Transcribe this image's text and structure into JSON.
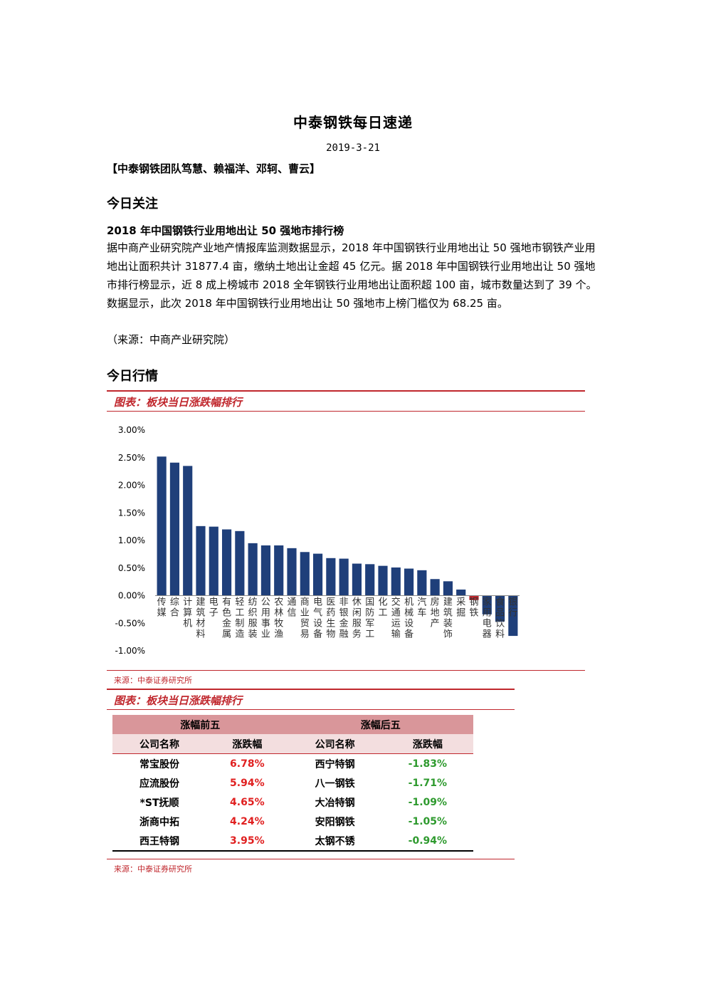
{
  "header": {
    "title": "中泰钢铁每日速递",
    "date": "2019-3-21",
    "team": "【中泰钢铁团队笃慧、赖福洋、邓轲、曹云】"
  },
  "focus": {
    "heading": "今日关注",
    "news_title": "2018 年中国钢铁行业用地出让 50 强地市排行榜",
    "news_body": "据中商产业研究院产业地产情报库监测数据显示，2018 年中国钢铁行业用地出让 50 强地市钢铁产业用地出让面积共计 31877.4 亩，缴纳土地出让金超 45 亿元。据 2018 年中国钢铁行业用地出让 50 强地市排行榜显示，近 8 成上榜城市 2018 全年钢铁行业用地出让面积超 100 亩，城市数量达到了 39 个。数据显示，此次 2018 年中国钢铁行业用地出让 50 强地市上榜门槛仅为 68.25 亩。",
    "source": "（来源：中商产业研究院）"
  },
  "market": {
    "heading": "今日行情",
    "figure1": {
      "caption": "图表：板块当日涨跌幅排行",
      "source": "来源：中泰证券研究所"
    },
    "figure2": {
      "caption": "图表：板块当日涨跌幅排行",
      "source": "来源：中泰证券研究所"
    }
  },
  "chart_data": {
    "type": "bar",
    "ylim": [
      -0.01,
      0.03
    ],
    "yticks": [
      "3.00%",
      "2.50%",
      "2.00%",
      "1.50%",
      "1.00%",
      "0.50%",
      "0.00%",
      "-0.50%",
      "-1.00%"
    ],
    "categories": [
      "传媒",
      "综合",
      "计算机",
      "建筑材料",
      "电子",
      "有色金属",
      "轻工制造",
      "纺织服装",
      "公用事业",
      "农林牧渔",
      "通信",
      "商业贸易",
      "电气设备",
      "医药生物",
      "非银金融",
      "休闲服务",
      "国防军工",
      "化工",
      "交通运输",
      "机械设备",
      "汽车",
      "房地产",
      "建筑装饰",
      "采掘",
      "钢铁",
      "家用电器",
      "食品饮料",
      "银行"
    ],
    "values": [
      0.0252,
      0.0241,
      0.0235,
      0.0126,
      0.0125,
      0.012,
      0.0117,
      0.0095,
      0.0091,
      0.0091,
      0.0086,
      0.0079,
      0.0076,
      0.0068,
      0.0067,
      0.0058,
      0.0057,
      0.0054,
      0.0051,
      0.0049,
      0.0046,
      0.003,
      0.0026,
      0.0011,
      -0.0008,
      -0.0034,
      -0.0047,
      -0.0073
    ],
    "colors": {
      "up": "#1f3f7a",
      "steel": "#c0272d"
    }
  },
  "table": {
    "top_header": "涨幅前五",
    "bottom_header": "涨幅后五",
    "col_name": "公司名称",
    "col_change": "涨跌幅",
    "top": [
      {
        "name": "常宝股份",
        "change": "6.78%"
      },
      {
        "name": "应流股份",
        "change": "5.94%"
      },
      {
        "name": "*ST抚顺",
        "change": "4.65%"
      },
      {
        "name": "浙商中拓",
        "change": "4.24%"
      },
      {
        "name": "西王特钢",
        "change": "3.95%"
      }
    ],
    "bottom": [
      {
        "name": "西宁特钢",
        "change": "-1.83%"
      },
      {
        "name": "八一钢铁",
        "change": "-1.71%"
      },
      {
        "name": "大冶特钢",
        "change": "-1.09%"
      },
      {
        "name": "安阳钢铁",
        "change": "-1.05%"
      },
      {
        "name": "太钢不锈",
        "change": "-0.94%"
      }
    ]
  }
}
